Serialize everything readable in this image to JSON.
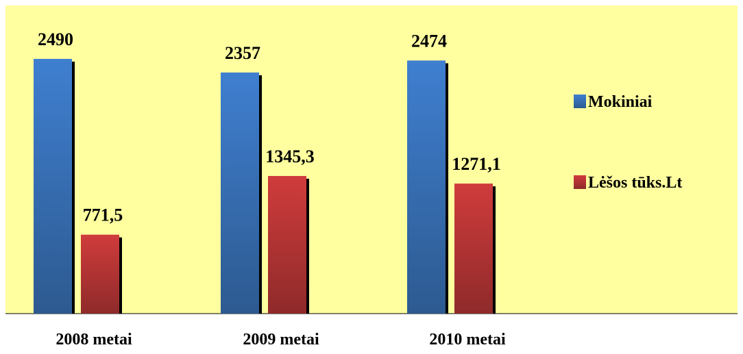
{
  "chart_data": {
    "type": "bar",
    "categories": [
      "2008 metai",
      "2009 metai",
      "2010 metai"
    ],
    "series": [
      {
        "name": "Mokiniai",
        "values": [
          2490,
          2357,
          2474
        ],
        "labels": [
          "2490",
          "2357",
          "2474"
        ],
        "color": "#3f78c8"
      },
      {
        "name": "Lėšos tūks.Lt",
        "values": [
          771.5,
          1345.3,
          1271.1
        ],
        "labels": [
          "771,5",
          "1345,3",
          "1271,1"
        ],
        "color": "#c83c3c"
      }
    ],
    "ylim": [
      0,
      2800
    ],
    "grid": false,
    "legend": "right",
    "plot_background": "#ffffa0"
  }
}
